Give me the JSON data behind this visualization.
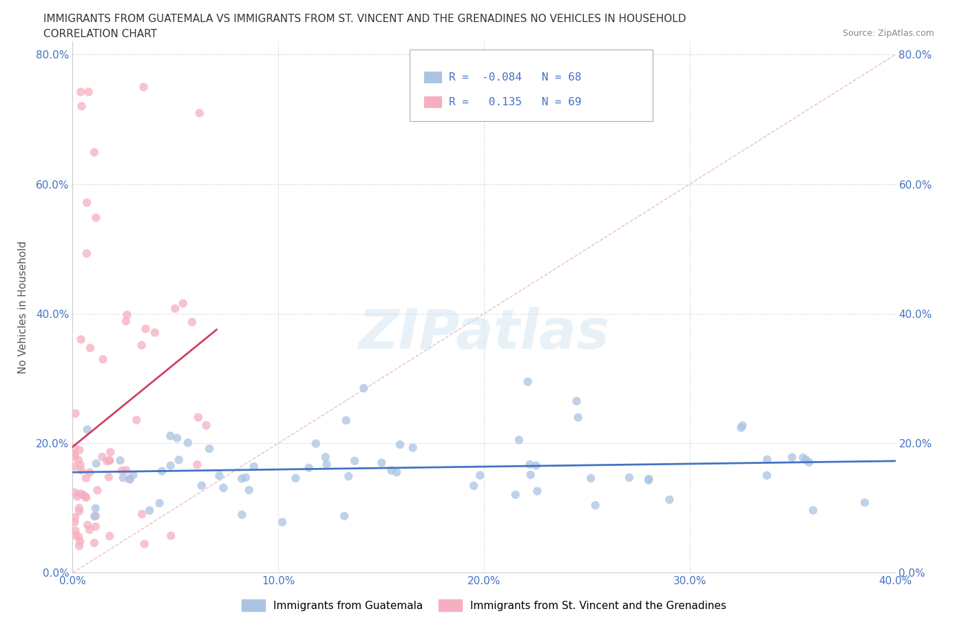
{
  "title_line1": "IMMIGRANTS FROM GUATEMALA VS IMMIGRANTS FROM ST. VINCENT AND THE GRENADINES NO VEHICLES IN HOUSEHOLD",
  "title_line2": "CORRELATION CHART",
  "source_text": "Source: ZipAtlas.com",
  "ylabel": "No Vehicles in Household",
  "xlim": [
    0.0,
    0.4
  ],
  "ylim": [
    0.0,
    0.82
  ],
  "xtick_labels": [
    "0.0%",
    "10.0%",
    "20.0%",
    "30.0%",
    "40.0%"
  ],
  "xtick_vals": [
    0.0,
    0.1,
    0.2,
    0.3,
    0.4
  ],
  "ytick_labels": [
    "0.0%",
    "20.0%",
    "40.0%",
    "60.0%",
    "80.0%"
  ],
  "ytick_vals": [
    0.0,
    0.2,
    0.4,
    0.6,
    0.8
  ],
  "color_guatemala": "#aac4e2",
  "color_stvinc": "#f5afc0",
  "trendline_color_guatemala": "#4472c4",
  "trendline_color_stvinc": "#d04060",
  "diagonal_color": "#e8b8c0",
  "R_guatemala": -0.084,
  "N_guatemala": 68,
  "R_stvinc": 0.135,
  "N_stvinc": 69,
  "legend_label_guatemala": "Immigrants from Guatemala",
  "legend_label_stvinc": "Immigrants from St. Vincent and the Grenadines",
  "watermark": "ZIPatlas",
  "title_fontsize": 11,
  "source_fontsize": 9,
  "tick_fontsize": 11,
  "ylabel_fontsize": 11
}
